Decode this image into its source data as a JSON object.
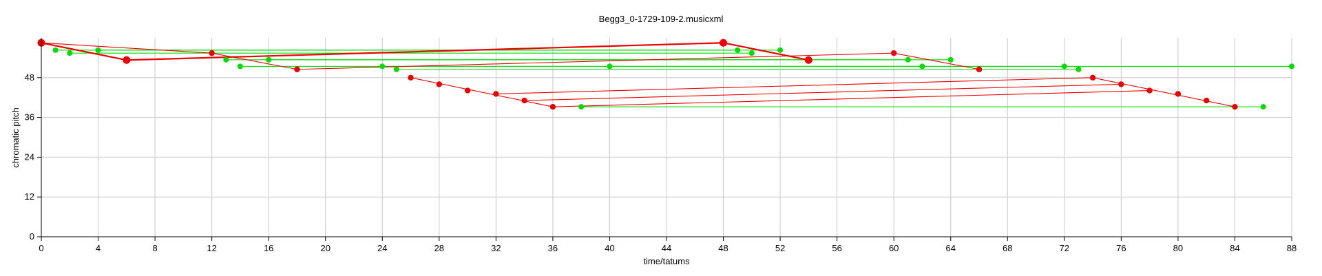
{
  "chart_data": {
    "type": "scatter",
    "title": "Begg3_0-1729-109-2.musicxml",
    "xlabel": "time/tatums",
    "ylabel": "chromatic pitch",
    "xlim": [
      0,
      88
    ],
    "ylim": [
      0,
      60
    ],
    "x_ticks": [
      0,
      4,
      8,
      12,
      16,
      20,
      24,
      28,
      32,
      36,
      40,
      44,
      48,
      52,
      56,
      60,
      64,
      68,
      72,
      76,
      80,
      84,
      88
    ],
    "y_ticks": [
      0,
      12,
      24,
      36,
      48
    ],
    "grid": true,
    "colors": {
      "red": "#ee0000",
      "green": "#00dd00",
      "grid": "#c8c8c8",
      "axis": "#000000"
    },
    "series": [
      {
        "color": "red",
        "points": [
          {
            "x": 0,
            "y": 58.5,
            "size": "large"
          },
          {
            "x": 6,
            "y": 53.3,
            "size": "large"
          },
          {
            "x": 12,
            "y": 55.4,
            "size": "small"
          },
          {
            "x": 18,
            "y": 50.5,
            "size": "small"
          },
          {
            "x": 26,
            "y": 48.0,
            "size": "small"
          },
          {
            "x": 28,
            "y": 46.0,
            "size": "small"
          },
          {
            "x": 30,
            "y": 44.1,
            "size": "small"
          },
          {
            "x": 32,
            "y": 43.1,
            "size": "small"
          },
          {
            "x": 34,
            "y": 41.1,
            "size": "small"
          },
          {
            "x": 36,
            "y": 39.2,
            "size": "small"
          },
          {
            "x": 48,
            "y": 58.5,
            "size": "large"
          },
          {
            "x": 54,
            "y": 53.3,
            "size": "large"
          },
          {
            "x": 60,
            "y": 55.4,
            "size": "small"
          },
          {
            "x": 66,
            "y": 50.5,
            "size": "small"
          },
          {
            "x": 74,
            "y": 48.0,
            "size": "small"
          },
          {
            "x": 76,
            "y": 46.0,
            "size": "small"
          },
          {
            "x": 78,
            "y": 44.1,
            "size": "small"
          },
          {
            "x": 80,
            "y": 43.1,
            "size": "small"
          },
          {
            "x": 82,
            "y": 41.1,
            "size": "small"
          },
          {
            "x": 84,
            "y": 39.2,
            "size": "small"
          }
        ],
        "lines": [
          [
            0,
            58.5,
            6,
            53.3,
            "thick"
          ],
          [
            6,
            53.3,
            48,
            58.5,
            "thick"
          ],
          [
            48,
            58.5,
            54,
            53.3,
            "thick"
          ],
          [
            0,
            58.5,
            12,
            55.4,
            "thin"
          ],
          [
            12,
            55.4,
            18,
            50.5,
            "thin"
          ],
          [
            18,
            50.5,
            60,
            55.4,
            "thin"
          ],
          [
            60,
            55.4,
            66,
            50.5,
            "thin"
          ],
          [
            26,
            48.0,
            36,
            39.2,
            "thin"
          ],
          [
            32,
            43.1,
            74,
            48.0,
            "thin"
          ],
          [
            34,
            41.1,
            76,
            46.0,
            "thin"
          ],
          [
            36,
            39.2,
            78,
            44.1,
            "thin"
          ],
          [
            74,
            48.0,
            84,
            39.2,
            "thin"
          ]
        ]
      },
      {
        "color": "green",
        "points": [
          {
            "x": 1,
            "y": 56.3
          },
          {
            "x": 2,
            "y": 55.4
          },
          {
            "x": 4,
            "y": 56.3
          },
          {
            "x": 13,
            "y": 53.4
          },
          {
            "x": 14,
            "y": 51.4
          },
          {
            "x": 16,
            "y": 53.4
          },
          {
            "x": 24,
            "y": 51.4
          },
          {
            "x": 25,
            "y": 50.5
          },
          {
            "x": 38,
            "y": 39.2
          },
          {
            "x": 40,
            "y": 51.4
          },
          {
            "x": 49,
            "y": 56.3
          },
          {
            "x": 50,
            "y": 55.4
          },
          {
            "x": 52,
            "y": 56.3
          },
          {
            "x": 61,
            "y": 53.4
          },
          {
            "x": 62,
            "y": 51.4
          },
          {
            "x": 64,
            "y": 53.4
          },
          {
            "x": 72,
            "y": 51.4
          },
          {
            "x": 73,
            "y": 50.5
          },
          {
            "x": 86,
            "y": 39.2
          },
          {
            "x": 88,
            "y": 51.4
          }
        ],
        "lines": [
          [
            1,
            56.3,
            49,
            56.3
          ],
          [
            2,
            55.4,
            50,
            55.4
          ],
          [
            4,
            56.3,
            52,
            56.3
          ],
          [
            13,
            53.4,
            61,
            53.4
          ],
          [
            16,
            53.4,
            64,
            53.4
          ],
          [
            14,
            51.4,
            62,
            51.4
          ],
          [
            24,
            51.4,
            72,
            51.4
          ],
          [
            40,
            51.4,
            88,
            51.4
          ],
          [
            25,
            50.5,
            73,
            50.5
          ],
          [
            38,
            39.2,
            86,
            39.2
          ]
        ]
      }
    ]
  }
}
